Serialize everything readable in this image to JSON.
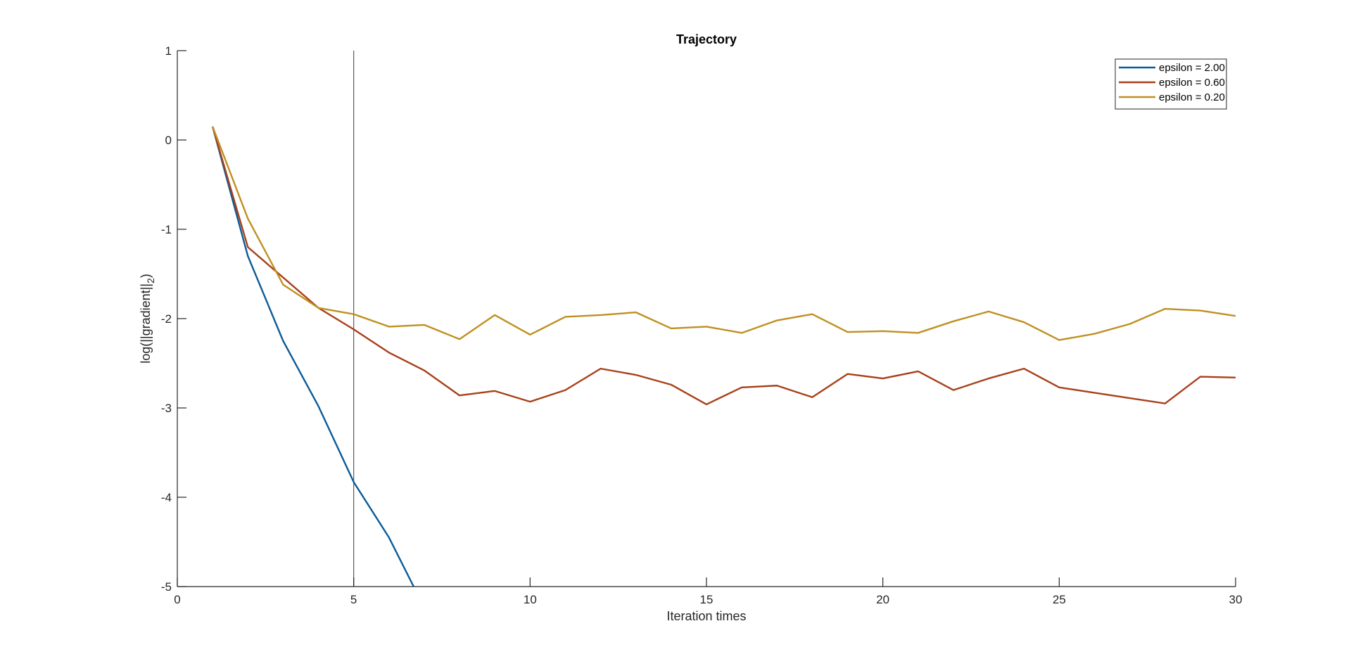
{
  "chart_data": {
    "type": "line",
    "title": "Trajectory",
    "xlabel": "Iteration times",
    "ylabel": "log(||gradient||_2)",
    "xlim": [
      0,
      30
    ],
    "ylim": [
      -5,
      1
    ],
    "xticks": [
      0,
      5,
      10,
      15,
      20,
      25,
      30
    ],
    "yticks": [
      1,
      0,
      -1,
      -2,
      -3,
      -4,
      -5
    ],
    "grid": false,
    "legend_position": "top-right",
    "reference_line_x": 5,
    "series": [
      {
        "name": "epsilon = 2.00",
        "color": "#0b5b98",
        "x": [
          1,
          2,
          3,
          4,
          5,
          6,
          6.7
        ],
        "y": [
          0.15,
          -1.3,
          -2.25,
          -2.98,
          -3.83,
          -4.45,
          -5.0
        ]
      },
      {
        "name": "epsilon = 0.60",
        "color": "#a8401a",
        "x": [
          1,
          2,
          3,
          4,
          5,
          6,
          7,
          8,
          9,
          10,
          11,
          12,
          13,
          14,
          15,
          16,
          17,
          18,
          19,
          20,
          21,
          22,
          23,
          24,
          25,
          26,
          27,
          28,
          29,
          30
        ],
        "y": [
          0.15,
          -1.2,
          -1.54,
          -1.88,
          -2.12,
          -2.38,
          -2.58,
          -2.86,
          -2.81,
          -2.93,
          -2.8,
          -2.56,
          -2.63,
          -2.74,
          -2.96,
          -2.77,
          -2.75,
          -2.88,
          -2.62,
          -2.67,
          -2.59,
          -2.8,
          -2.67,
          -2.56,
          -2.77,
          -2.83,
          -2.89,
          -2.95,
          -2.65,
          -2.66
        ]
      },
      {
        "name": "epsilon = 0.20",
        "color": "#bf9020",
        "x": [
          1,
          2,
          3,
          4,
          5,
          6,
          7,
          8,
          9,
          10,
          11,
          12,
          13,
          14,
          15,
          16,
          17,
          18,
          19,
          20,
          21,
          22,
          23,
          24,
          25,
          26,
          27,
          28,
          29,
          30
        ],
        "y": [
          0.15,
          -0.88,
          -1.62,
          -1.88,
          -1.95,
          -2.09,
          -2.07,
          -2.23,
          -1.96,
          -2.18,
          -1.98,
          -1.96,
          -1.93,
          -2.11,
          -2.09,
          -2.16,
          -2.02,
          -1.95,
          -2.15,
          -2.14,
          -2.16,
          -2.03,
          -1.92,
          -2.04,
          -2.24,
          -2.17,
          -2.06,
          -1.89,
          -1.91,
          -1.97
        ]
      }
    ]
  }
}
